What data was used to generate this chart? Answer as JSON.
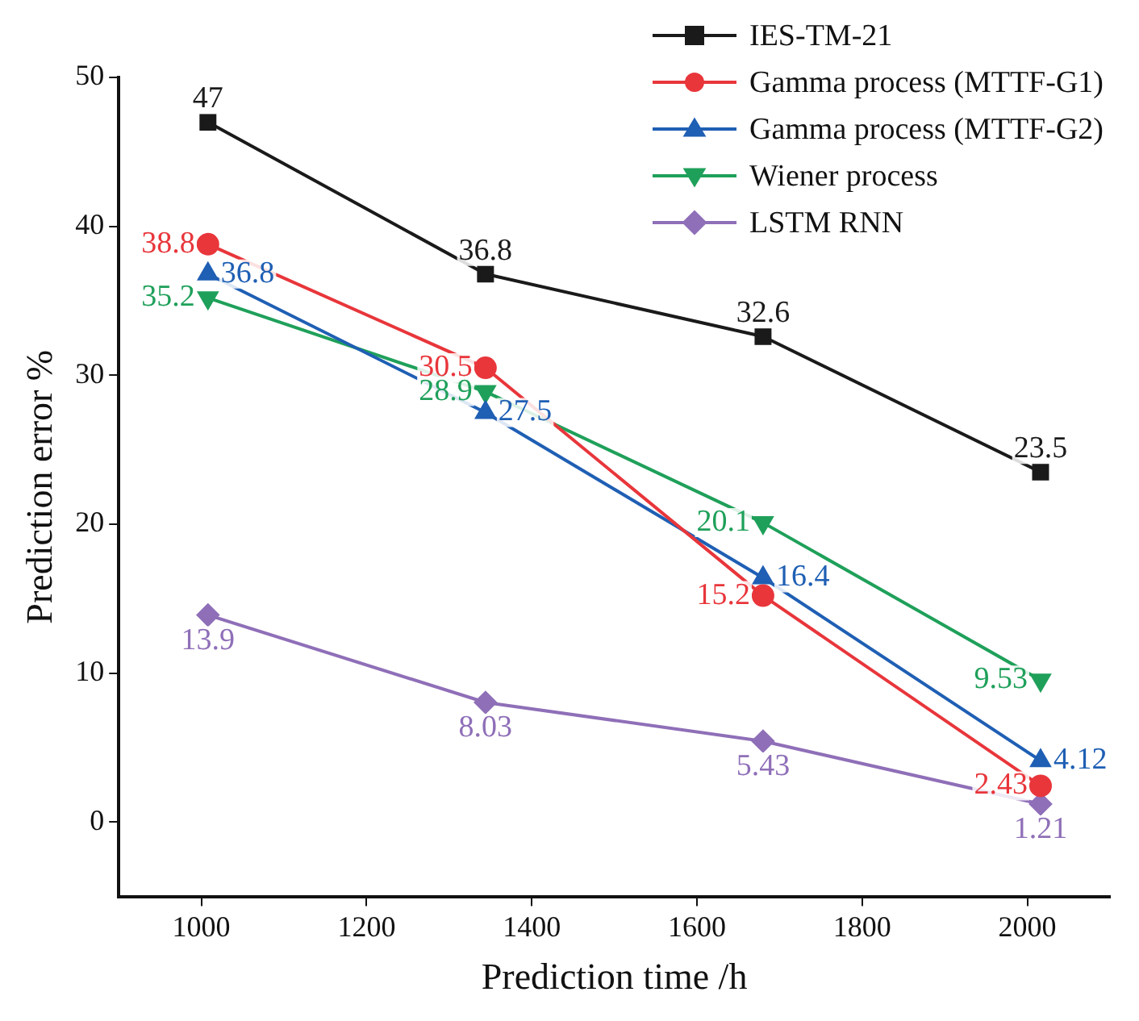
{
  "chart_data": {
    "type": "line",
    "xlabel": "Prediction time /h",
    "ylabel": "Prediction error %",
    "x": [
      1008,
      1344,
      1680,
      2016
    ],
    "series": [
      {
        "name": "IES-TM-21",
        "color": "#1a1a1a",
        "marker": "square",
        "values": [
          47,
          36.8,
          32.6,
          23.5
        ]
      },
      {
        "name": "Gamma process (MTTF-G1)",
        "color": "#e8363b",
        "marker": "circle",
        "values": [
          38.8,
          30.5,
          15.2,
          2.43
        ]
      },
      {
        "name": "Gamma process (MTTF-G2)",
        "color": "#1f5fb4",
        "marker": "triangle",
        "values": [
          36.8,
          27.5,
          16.4,
          4.12
        ]
      },
      {
        "name": "Wiener process",
        "color": "#1fa05a",
        "marker": "triangle-down",
        "values": [
          35.2,
          28.9,
          20.1,
          9.53
        ]
      },
      {
        "name": "LSTM RNN",
        "color": "#8f6fb8",
        "marker": "diamond",
        "values": [
          13.9,
          8.03,
          5.43,
          1.21
        ]
      }
    ],
    "xlim": [
      900,
      2100
    ],
    "xticks": [
      1000,
      1200,
      1400,
      1600,
      1800,
      2000
    ],
    "ylim": [
      -5,
      50
    ],
    "yticks": [
      0,
      10,
      20,
      30,
      40,
      50
    ],
    "data_labels": true,
    "legend": "top right",
    "grid": false,
    "line_style": "solid"
  }
}
